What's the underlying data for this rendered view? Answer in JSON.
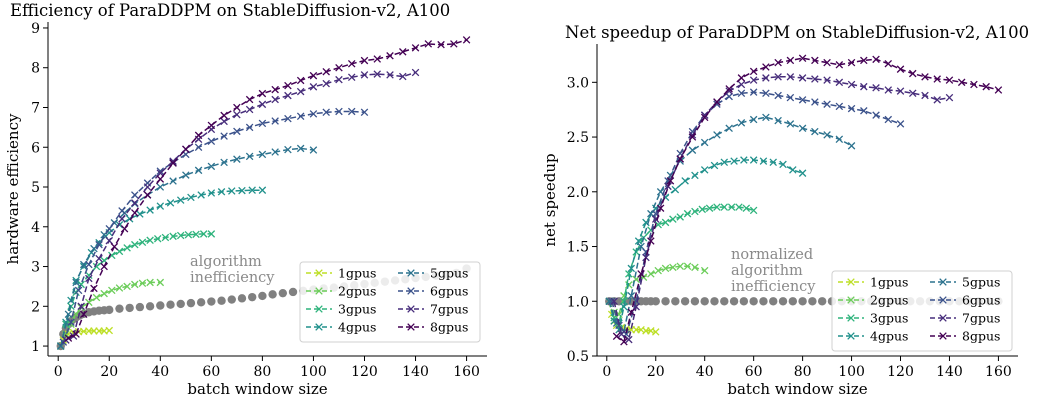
{
  "chart_data": [
    {
      "type": "line",
      "title": "Efficiency of ParaDDPM on StableDiffusion-v2, A100",
      "xlabel": "batch window size",
      "ylabel": "hardware efficiency",
      "xlim": [
        -4,
        168
      ],
      "ylim": [
        0.75,
        9.15
      ],
      "xticks": [
        0,
        20,
        40,
        60,
        80,
        100,
        120,
        140,
        160
      ],
      "yticks": [
        1,
        2,
        3,
        4,
        5,
        6,
        7,
        8,
        9
      ],
      "annotation": [
        "algorithm",
        "inefficiency"
      ],
      "legend_position": "lower-right",
      "legend_columns": 2,
      "algorithm_series": {
        "color": "#808080",
        "x": [
          1,
          2,
          3,
          4,
          5,
          6,
          7,
          8,
          9,
          10,
          12,
          14,
          16,
          18,
          20,
          24,
          28,
          32,
          36,
          40,
          44,
          48,
          52,
          56,
          60,
          64,
          68,
          72,
          76,
          80,
          84,
          88,
          92,
          96,
          100,
          104,
          108,
          112,
          116,
          120,
          124,
          128,
          132,
          136,
          140,
          144,
          148,
          152,
          156,
          160
        ],
        "y": [
          1.0,
          1.3,
          1.45,
          1.55,
          1.62,
          1.68,
          1.72,
          1.76,
          1.79,
          1.81,
          1.85,
          1.87,
          1.89,
          1.9,
          1.91,
          1.94,
          1.96,
          1.98,
          2.0,
          2.02,
          2.04,
          2.06,
          2.08,
          2.1,
          2.12,
          2.14,
          2.17,
          2.2,
          2.23,
          2.26,
          2.3,
          2.33,
          2.36,
          2.39,
          2.42,
          2.45,
          2.47,
          2.5,
          2.53,
          2.56,
          2.59,
          2.62,
          2.65,
          2.68,
          2.71,
          2.74,
          2.77,
          2.8,
          2.84,
          2.95
        ]
      },
      "series": [
        {
          "name": "1gpus",
          "color": "#bddf26",
          "x": [
            1,
            2,
            3,
            4,
            6,
            8,
            10,
            12,
            14,
            16,
            18,
            20
          ],
          "y": [
            1.0,
            1.15,
            1.25,
            1.3,
            1.34,
            1.36,
            1.37,
            1.38,
            1.38,
            1.38,
            1.38,
            1.39
          ]
        },
        {
          "name": "2gpus",
          "color": "#6ccd5a",
          "x": [
            1,
            3,
            5,
            7,
            9,
            12,
            15,
            18,
            21,
            24,
            27,
            30,
            33,
            36,
            40
          ],
          "y": [
            1.0,
            1.3,
            1.55,
            1.8,
            1.97,
            2.1,
            2.22,
            2.32,
            2.4,
            2.46,
            2.5,
            2.55,
            2.58,
            2.6,
            2.6
          ]
        },
        {
          "name": "3gpus",
          "color": "#2eb37c",
          "x": [
            1,
            3,
            5,
            7,
            9,
            12,
            15,
            18,
            21,
            24,
            27,
            30,
            33,
            36,
            39,
            42,
            45,
            48,
            51,
            54,
            57,
            60
          ],
          "y": [
            1.0,
            1.55,
            2.0,
            2.35,
            2.55,
            2.78,
            3.0,
            3.15,
            3.28,
            3.38,
            3.47,
            3.55,
            3.61,
            3.66,
            3.7,
            3.73,
            3.76,
            3.78,
            3.8,
            3.81,
            3.82,
            3.82
          ]
        },
        {
          "name": "4gpus",
          "color": "#21918c",
          "x": [
            1,
            3,
            5,
            7,
            10,
            13,
            16,
            20,
            24,
            28,
            32,
            36,
            40,
            44,
            48,
            52,
            56,
            60,
            64,
            68,
            72,
            76,
            80
          ],
          "y": [
            1.0,
            1.6,
            2.15,
            2.65,
            3.0,
            3.35,
            3.6,
            3.85,
            4.05,
            4.2,
            4.32,
            4.42,
            4.52,
            4.6,
            4.67,
            4.74,
            4.8,
            4.85,
            4.88,
            4.9,
            4.91,
            4.92,
            4.92
          ]
        },
        {
          "name": "5gpus",
          "color": "#2c728e",
          "x": [
            1,
            4,
            7,
            10,
            14,
            18,
            22,
            26,
            30,
            35,
            40,
            45,
            50,
            55,
            60,
            65,
            70,
            75,
            80,
            85,
            90,
            95,
            100
          ],
          "y": [
            1.0,
            1.8,
            2.6,
            3.05,
            3.45,
            3.8,
            4.1,
            4.35,
            4.58,
            4.8,
            5.0,
            5.15,
            5.3,
            5.42,
            5.52,
            5.62,
            5.7,
            5.77,
            5.82,
            5.88,
            5.94,
            5.97,
            5.93
          ]
        },
        {
          "name": "6gpus",
          "color": "#3b528b",
          "x": [
            2,
            5,
            8,
            12,
            16,
            20,
            25,
            30,
            35,
            40,
            45,
            50,
            55,
            60,
            65,
            70,
            75,
            80,
            85,
            90,
            95,
            100,
            105,
            110,
            115,
            120
          ],
          "y": [
            1.1,
            1.6,
            2.4,
            3.05,
            3.55,
            3.95,
            4.4,
            4.8,
            5.1,
            5.4,
            5.62,
            5.82,
            6.0,
            6.15,
            6.28,
            6.4,
            6.5,
            6.6,
            6.66,
            6.72,
            6.78,
            6.84,
            6.88,
            6.9,
            6.9,
            6.88
          ]
        },
        {
          "name": "7gpus",
          "color": "#472d7b",
          "x": [
            3,
            6,
            9,
            12,
            16,
            20,
            25,
            30,
            35,
            40,
            45,
            50,
            55,
            60,
            65,
            70,
            75,
            80,
            85,
            90,
            95,
            100,
            105,
            110,
            115,
            120,
            125,
            130,
            135,
            140
          ],
          "y": [
            1.15,
            1.25,
            2.0,
            2.7,
            3.2,
            3.65,
            4.2,
            4.6,
            5.0,
            5.35,
            5.65,
            5.95,
            6.2,
            6.45,
            6.65,
            6.82,
            6.95,
            7.08,
            7.2,
            7.3,
            7.4,
            7.52,
            7.6,
            7.7,
            7.76,
            7.82,
            7.84,
            7.82,
            7.78,
            7.88
          ]
        },
        {
          "name": "8gpus",
          "color": "#440154",
          "x": [
            4,
            7,
            10,
            14,
            18,
            22,
            26,
            30,
            35,
            40,
            45,
            50,
            55,
            60,
            65,
            70,
            75,
            80,
            85,
            90,
            95,
            100,
            105,
            110,
            115,
            120,
            125,
            130,
            135,
            140,
            145,
            150,
            155,
            160
          ],
          "y": [
            1.2,
            1.3,
            1.8,
            2.45,
            3.0,
            3.5,
            3.95,
            4.35,
            4.8,
            5.2,
            5.6,
            5.95,
            6.3,
            6.55,
            6.8,
            7.0,
            7.2,
            7.35,
            7.45,
            7.55,
            7.68,
            7.8,
            7.9,
            8.0,
            8.1,
            8.18,
            8.22,
            8.3,
            8.4,
            8.5,
            8.6,
            8.58,
            8.6,
            8.7
          ]
        }
      ]
    },
    {
      "type": "line",
      "title": "Net speedup of ParaDDPM on StableDiffusion-v2, A100",
      "xlabel": "batch window size",
      "ylabel": "net speedup",
      "xlim": [
        -4,
        168
      ],
      "ylim": [
        0.5,
        3.35
      ],
      "xticks": [
        0,
        20,
        40,
        60,
        80,
        100,
        120,
        140,
        160
      ],
      "yticks": [
        0.5,
        1.0,
        1.5,
        2.0,
        2.5,
        3.0
      ],
      "ytick_labels": [
        "0.5",
        "1.0",
        "1.5",
        "2.0",
        "2.5",
        "3.0"
      ],
      "annotation": [
        "normalized",
        "algorithm",
        "inefficiency"
      ],
      "legend_position": "lower-right",
      "legend_columns": 2,
      "algorithm_series": {
        "color": "#808080",
        "x": [
          1,
          3,
          5,
          8,
          10,
          12,
          14,
          16,
          18,
          20,
          24,
          28,
          32,
          36,
          40,
          44,
          48,
          52,
          56,
          60,
          64,
          68,
          72,
          76,
          80,
          84,
          88,
          92,
          96,
          100,
          104,
          108,
          112,
          116,
          120,
          124,
          128,
          132,
          136,
          140,
          144,
          148,
          152,
          156,
          160
        ],
        "y": [
          1.0,
          1.0,
          1.0,
          1.0,
          1.0,
          1.0,
          1.0,
          1.0,
          1.0,
          1.0,
          1.0,
          1.0,
          1.0,
          1.0,
          1.0,
          1.0,
          1.0,
          1.0,
          1.0,
          1.0,
          1.0,
          1.0,
          1.0,
          1.0,
          1.0,
          1.0,
          1.0,
          1.0,
          1.0,
          1.0,
          1.0,
          1.0,
          1.0,
          1.0,
          1.0,
          1.0,
          1.0,
          1.0,
          1.0,
          1.0,
          1.0,
          1.0,
          1.0,
          1.0,
          1.0
        ]
      },
      "series": [
        {
          "name": "1gpus",
          "color": "#bddf26",
          "x": [
            1,
            2,
            3,
            4,
            6,
            8,
            10,
            12,
            14,
            16,
            18,
            20
          ],
          "y": [
            1.0,
            0.88,
            0.82,
            0.78,
            0.76,
            0.75,
            0.74,
            0.74,
            0.74,
            0.73,
            0.73,
            0.72
          ]
        },
        {
          "name": "2gpus",
          "color": "#6ccd5a",
          "x": [
            1,
            3,
            5,
            7,
            9,
            12,
            15,
            18,
            21,
            24,
            27,
            30,
            33,
            36,
            40
          ],
          "y": [
            1.0,
            0.9,
            0.88,
            1.05,
            1.15,
            1.2,
            1.22,
            1.25,
            1.28,
            1.3,
            1.31,
            1.32,
            1.32,
            1.31,
            1.28
          ]
        },
        {
          "name": "3gpus",
          "color": "#2eb37c",
          "x": [
            1,
            3,
            5,
            7,
            9,
            12,
            15,
            18,
            21,
            24,
            27,
            30,
            33,
            36,
            39,
            42,
            45,
            48,
            51,
            54,
            57,
            60
          ],
          "y": [
            1.0,
            0.85,
            0.8,
            1.0,
            1.25,
            1.45,
            1.58,
            1.65,
            1.7,
            1.72,
            1.75,
            1.77,
            1.8,
            1.82,
            1.84,
            1.85,
            1.86,
            1.86,
            1.86,
            1.86,
            1.85,
            1.83
          ]
        },
        {
          "name": "4gpus",
          "color": "#21918c",
          "x": [
            1,
            3,
            5,
            7,
            10,
            13,
            16,
            20,
            24,
            28,
            32,
            36,
            40,
            44,
            48,
            52,
            56,
            60,
            64,
            68,
            72,
            76,
            80
          ],
          "y": [
            1.0,
            0.82,
            0.74,
            0.95,
            1.3,
            1.55,
            1.72,
            1.85,
            1.95,
            2.02,
            2.1,
            2.15,
            2.2,
            2.24,
            2.27,
            2.28,
            2.29,
            2.29,
            2.28,
            2.27,
            2.25,
            2.2,
            2.17
          ]
        },
        {
          "name": "5gpus",
          "color": "#2c728e",
          "x": [
            1,
            4,
            7,
            10,
            14,
            18,
            22,
            26,
            30,
            35,
            40,
            45,
            50,
            55,
            60,
            65,
            70,
            75,
            80,
            85,
            90,
            95,
            100
          ],
          "y": [
            1.0,
            0.8,
            0.72,
            1.05,
            1.5,
            1.8,
            2.0,
            2.15,
            2.28,
            2.38,
            2.45,
            2.52,
            2.58,
            2.63,
            2.66,
            2.68,
            2.65,
            2.62,
            2.58,
            2.55,
            2.52,
            2.48,
            2.42
          ]
        },
        {
          "name": "6gpus",
          "color": "#3b528b",
          "x": [
            2,
            5,
            8,
            12,
            16,
            20,
            25,
            30,
            35,
            40,
            45,
            50,
            55,
            60,
            65,
            70,
            75,
            80,
            85,
            90,
            95,
            100,
            105,
            110,
            115,
            120
          ],
          "y": [
            1.0,
            0.78,
            0.7,
            1.0,
            1.45,
            1.8,
            2.1,
            2.35,
            2.55,
            2.7,
            2.8,
            2.87,
            2.9,
            2.91,
            2.9,
            2.88,
            2.86,
            2.84,
            2.82,
            2.8,
            2.78,
            2.76,
            2.74,
            2.7,
            2.66,
            2.62
          ]
        },
        {
          "name": "7gpus",
          "color": "#472d7b",
          "x": [
            3,
            6,
            9,
            12,
            16,
            20,
            25,
            30,
            35,
            40,
            45,
            50,
            55,
            60,
            65,
            70,
            75,
            80,
            85,
            90,
            95,
            100,
            105,
            110,
            115,
            120,
            125,
            130,
            135,
            140
          ],
          "y": [
            1.0,
            0.7,
            0.65,
            0.95,
            1.4,
            1.75,
            2.05,
            2.3,
            2.52,
            2.7,
            2.82,
            2.92,
            2.98,
            3.02,
            3.04,
            3.05,
            3.05,
            3.04,
            3.03,
            3.02,
            3.0,
            2.98,
            2.96,
            2.95,
            2.93,
            2.92,
            2.9,
            2.88,
            2.84,
            2.86
          ]
        },
        {
          "name": "8gpus",
          "color": "#440154",
          "x": [
            4,
            7,
            10,
            14,
            18,
            22,
            26,
            30,
            35,
            40,
            45,
            50,
            55,
            60,
            65,
            70,
            75,
            80,
            85,
            90,
            95,
            100,
            105,
            110,
            115,
            120,
            125,
            130,
            135,
            140,
            145,
            150,
            155,
            160
          ],
          "y": [
            0.68,
            0.63,
            0.9,
            1.25,
            1.55,
            1.85,
            2.1,
            2.3,
            2.5,
            2.68,
            2.82,
            2.94,
            3.04,
            3.1,
            3.14,
            3.18,
            3.2,
            3.22,
            3.2,
            3.18,
            3.16,
            3.18,
            3.2,
            3.21,
            3.17,
            3.12,
            3.08,
            3.05,
            3.03,
            3.02,
            3.0,
            2.98,
            2.96,
            2.93
          ]
        }
      ]
    }
  ]
}
